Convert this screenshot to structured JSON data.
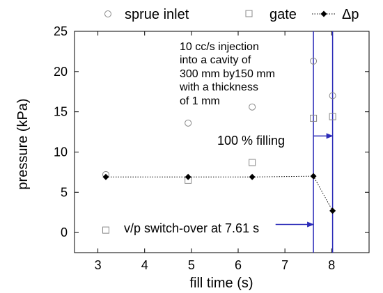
{
  "chart_data": {
    "type": "scatter",
    "title": "",
    "xlabel": "fill time (s)",
    "ylabel": "pressure (kPa)",
    "xlim": [
      2.5,
      8.8
    ],
    "ylim": [
      -2.5,
      25
    ],
    "xticks": [
      3,
      4,
      5,
      6,
      7,
      8
    ],
    "yticks": [
      0,
      5,
      10,
      15,
      20,
      25
    ],
    "grid": false,
    "legend_position": "top",
    "series": [
      {
        "name": "sprue inlet",
        "marker": "circle-open",
        "color": "#888888",
        "points": [
          [
            3.17,
            7.2
          ],
          [
            4.93,
            13.6
          ],
          [
            6.3,
            15.6
          ],
          [
            7.61,
            21.3
          ],
          [
            8.02,
            17.0
          ]
        ]
      },
      {
        "name": "gate",
        "marker": "square-open",
        "color": "#888888",
        "points": [
          [
            3.17,
            0.3
          ],
          [
            4.93,
            6.5
          ],
          [
            6.3,
            8.7
          ],
          [
            7.61,
            14.2
          ],
          [
            8.02,
            14.4
          ]
        ]
      },
      {
        "name": "Δp",
        "marker": "diamond-filled",
        "line": "dotted",
        "color": "#000000",
        "points": [
          [
            3.17,
            6.9
          ],
          [
            4.93,
            6.9
          ],
          [
            6.3,
            6.9
          ],
          [
            7.61,
            7.0
          ],
          [
            8.02,
            2.7
          ]
        ]
      }
    ],
    "vertical_lines": [
      {
        "x": 7.61,
        "color": "#2b2bb8"
      },
      {
        "x": 8.02,
        "color": "#2b2bb8"
      }
    ],
    "annotations": {
      "note_lines": [
        "10 cc/s injection",
        "into a cavity of",
        "300 mm by150 mm",
        "with a thickness",
        "of 1 mm"
      ],
      "filling_label": "100 % filling",
      "filling_arrow": {
        "y": 12.0,
        "from_x": 7.6,
        "to_x": 8.02
      },
      "switch_label": "v/p switch-over at 7.61 s",
      "switch_arrow": {
        "y": 1.0,
        "from_x": 6.8,
        "to_x": 7.61
      }
    },
    "accent_color": "#2b2bb8"
  }
}
